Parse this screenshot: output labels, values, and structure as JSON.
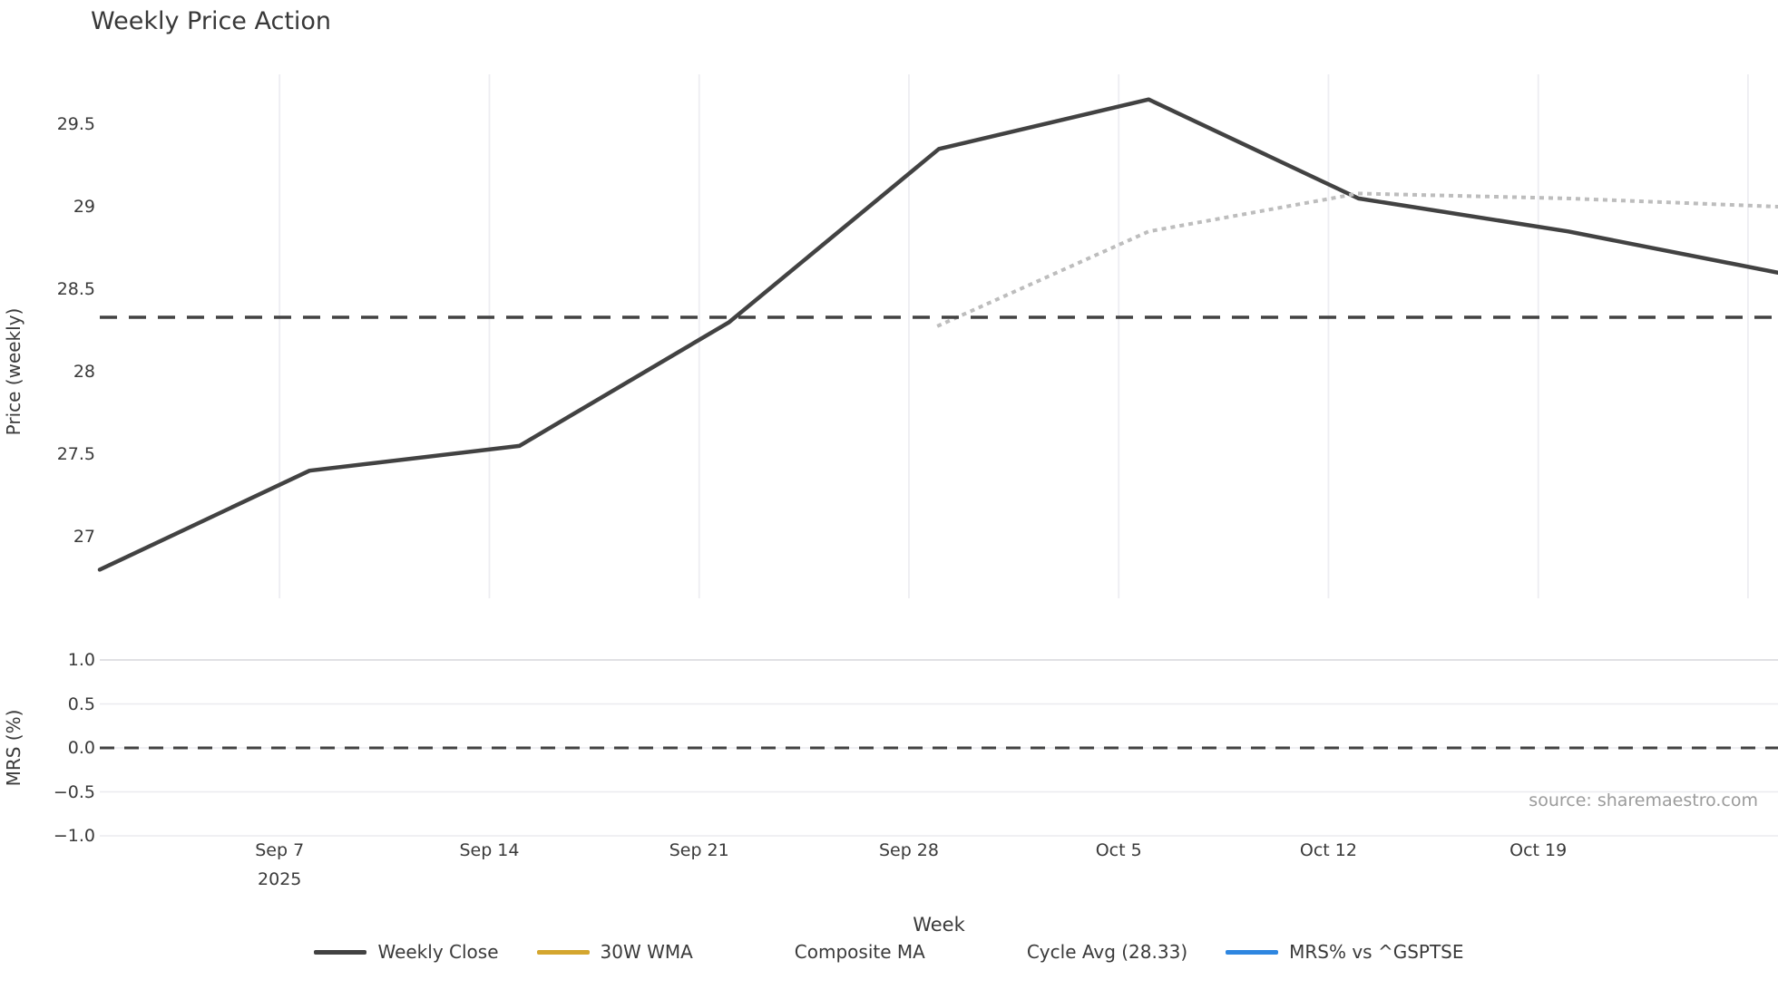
{
  "source_note": "source: sharemaestro.com",
  "chart_data": {
    "type": "line",
    "title": "Weekly Price Action",
    "xlabel": "Week",
    "ylabel_price": "Price (weekly)",
    "ylabel_mrs": "MRS (%)",
    "grid": "vertical gridlines on price panel, horizontal gridlines on MRS panel",
    "legend_position": "bottom-center",
    "point_dates": [
      "Sep 1",
      "Sep 8",
      "Sep 15",
      "Sep 22",
      "Sep 29",
      "Oct 6",
      "Oct 13",
      "Oct 20",
      "Oct 27"
    ],
    "x_days": [
      0,
      7,
      14,
      21,
      28,
      35,
      42,
      49,
      56
    ],
    "series": [
      {
        "name": "Weekly Close",
        "color": "#424242",
        "style": "solid",
        "panel": "price",
        "values": [
          26.8,
          27.4,
          27.55,
          28.3,
          29.35,
          29.65,
          29.05,
          28.85,
          28.6
        ]
      },
      {
        "name": "30W WMA",
        "color": "#d4a62f",
        "style": "solid",
        "panel": "price",
        "values": []
      },
      {
        "name": "Composite MA",
        "color": "#bdbdbd",
        "style": "dotted",
        "panel": "price",
        "values": [
          null,
          null,
          null,
          null,
          28.28,
          28.85,
          29.08,
          29.05,
          29.0
        ]
      },
      {
        "name": "Cycle Avg (28.33)",
        "color": "#424242",
        "style": "dashed",
        "panel": "price",
        "constant": 28.33
      },
      {
        "name": "MRS% vs ^GSPTSE",
        "color": "#2e86e0",
        "style": "solid",
        "panel": "mrs",
        "values": []
      }
    ],
    "price_axis": {
      "ticks": [
        {
          "label": "29.5",
          "v": 29.5
        },
        {
          "label": "29",
          "v": 29.0
        },
        {
          "label": "28.5",
          "v": 28.5
        },
        {
          "label": "28",
          "v": 28.0
        },
        {
          "label": "27.5",
          "v": 27.5
        },
        {
          "label": "27",
          "v": 27.0
        }
      ],
      "range": [
        26.63,
        29.81
      ]
    },
    "mrs_axis": {
      "ticks": [
        {
          "label": "1.0",
          "v": 1.0
        },
        {
          "label": "0.5",
          "v": 0.5
        },
        {
          "label": "0.0",
          "v": 0.0
        },
        {
          "label": "−0.5",
          "v": -0.5
        },
        {
          "label": "−1.0",
          "v": -1.0
        }
      ],
      "range": [
        -1.3,
        1.15
      ],
      "zero_line": "dashed"
    },
    "x_ticks": [
      {
        "label": "Sep 7",
        "sublabel": "2025",
        "day": 6
      },
      {
        "label": "Sep 14",
        "sublabel": "",
        "day": 13
      },
      {
        "label": "Sep 21",
        "sublabel": "",
        "day": 20
      },
      {
        "label": "Sep 28",
        "sublabel": "",
        "day": 27
      },
      {
        "label": "Oct 5",
        "sublabel": "",
        "day": 34
      },
      {
        "label": "Oct 12",
        "sublabel": "",
        "day": 41
      },
      {
        "label": "Oct 19",
        "sublabel": "",
        "day": 48
      },
      {
        "label": "",
        "sublabel": "",
        "day": 55
      }
    ]
  }
}
